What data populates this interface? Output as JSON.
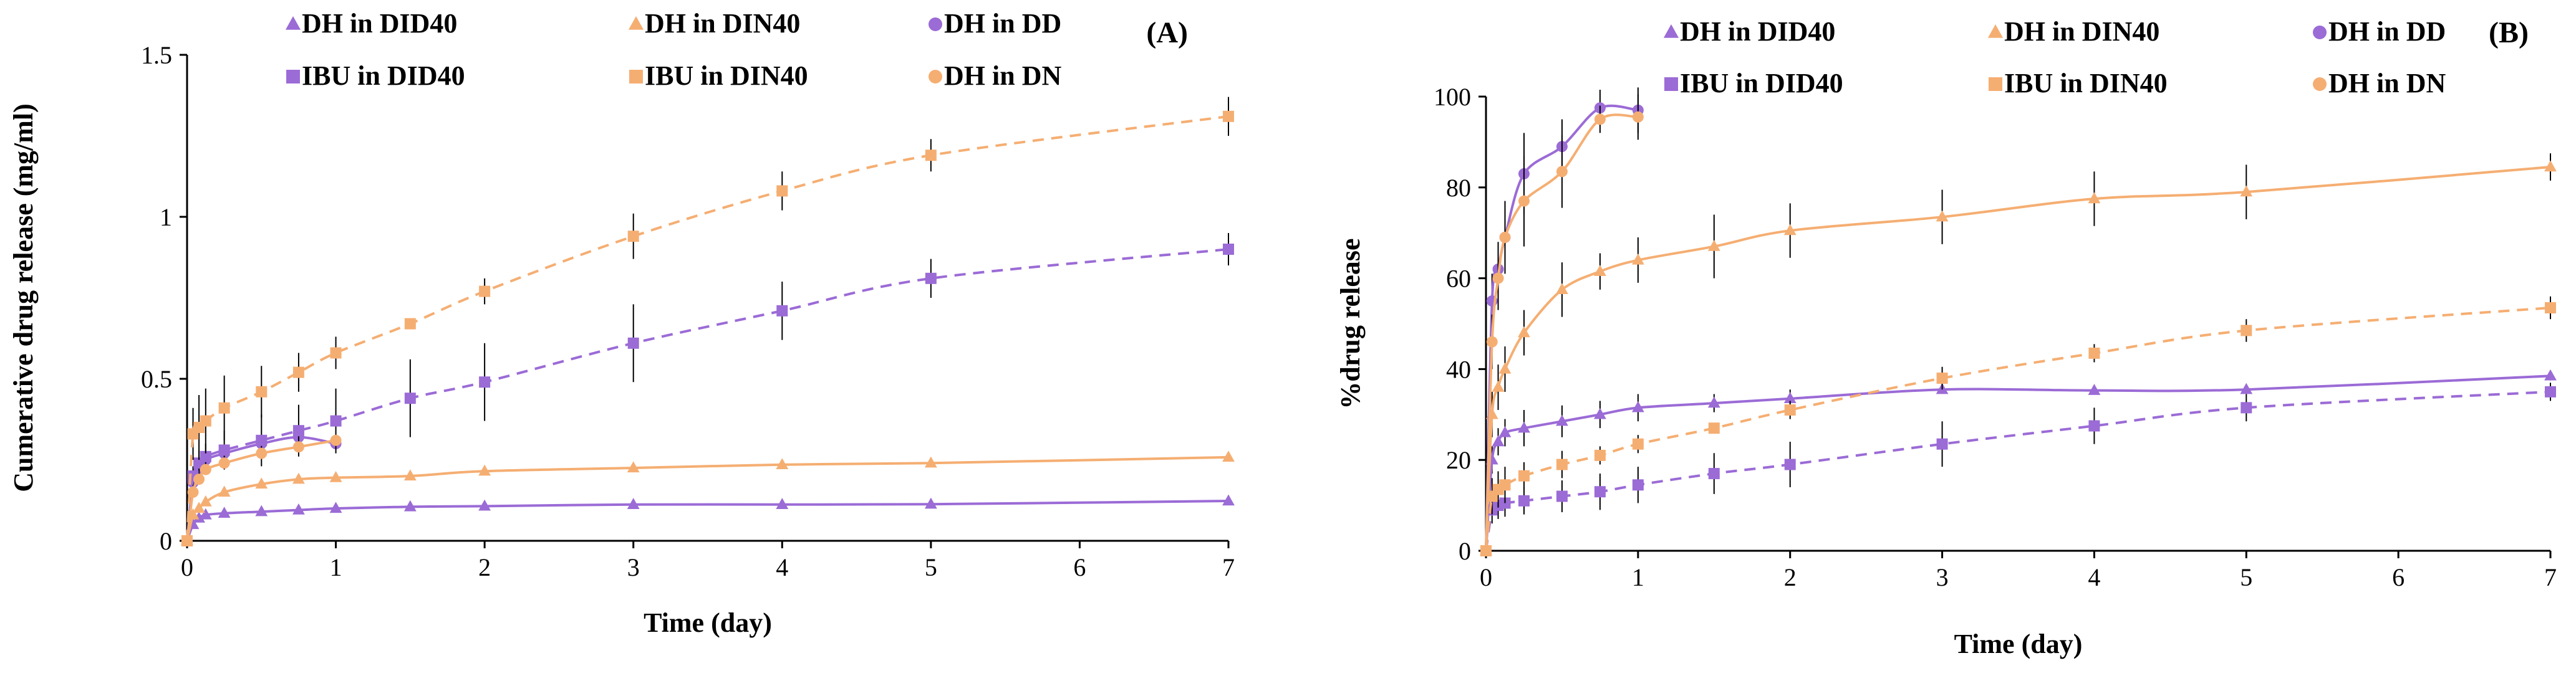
{
  "colors": {
    "purple": "#9b6bd6",
    "orange": "#f5ae72",
    "axis": "#000000",
    "errbar": "#000000"
  },
  "chart_data": [
    {
      "type": "line",
      "panel_label": "(A)",
      "xlabel": "Time (day)",
      "ylabel": "Cumerative drug release (mg/ml)",
      "xlim": [
        0,
        7
      ],
      "ylim": [
        0,
        1.5
      ],
      "xticks": [
        "0",
        "1",
        "2",
        "3",
        "4",
        "5",
        "6",
        "7"
      ],
      "yticks": [
        "0",
        "0.5",
        "1",
        "1.5"
      ],
      "grid": false,
      "legend_position": "top",
      "series": [
        {
          "name": "DH in DID40",
          "color": "purple",
          "marker": "triangle",
          "dash": "solid",
          "x": [
            0,
            0.04,
            0.08,
            0.125,
            0.25,
            0.5,
            0.75,
            1,
            1.5,
            2,
            3,
            4,
            5,
            7
          ],
          "y": [
            0,
            0.05,
            0.07,
            0.08,
            0.085,
            0.09,
            0.095,
            0.1,
            0.105,
            0.107,
            0.112,
            0.112,
            0.113,
            0.123
          ],
          "err": [
            0,
            0,
            0,
            0,
            0,
            0,
            0,
            0,
            0,
            0,
            0,
            0,
            0,
            0
          ]
        },
        {
          "name": "DH in DIN40",
          "color": "orange",
          "marker": "triangle",
          "dash": "solid",
          "x": [
            0,
            0.04,
            0.08,
            0.125,
            0.25,
            0.5,
            0.75,
            1,
            1.5,
            2,
            3,
            4,
            5,
            7
          ],
          "y": [
            0,
            0.08,
            0.1,
            0.12,
            0.15,
            0.175,
            0.19,
            0.195,
            0.2,
            0.215,
            0.225,
            0.235,
            0.24,
            0.258
          ],
          "err": [
            0,
            0,
            0,
            0,
            0,
            0,
            0,
            0,
            0,
            0,
            0,
            0,
            0,
            0
          ]
        },
        {
          "name": "DH in DD",
          "color": "purple",
          "marker": "circle",
          "dash": "solid",
          "x": [
            0,
            0.04,
            0.08,
            0.125,
            0.25,
            0.5,
            0.75,
            1
          ],
          "y": [
            0,
            0.18,
            0.22,
            0.25,
            0.27,
            0.3,
            0.32,
            0.3
          ],
          "err": [
            0,
            0,
            0,
            0,
            0,
            0,
            0,
            0
          ]
        },
        {
          "name": "IBU in DID40",
          "color": "purple",
          "marker": "square",
          "dash": "dashed",
          "x": [
            0,
            0.04,
            0.08,
            0.125,
            0.25,
            0.5,
            0.75,
            1,
            1.5,
            2,
            3,
            4,
            5,
            7
          ],
          "y": [
            0,
            0.2,
            0.24,
            0.26,
            0.28,
            0.31,
            0.34,
            0.37,
            0.44,
            0.49,
            0.61,
            0.71,
            0.81,
            0.9
          ],
          "err": [
            0,
            0.03,
            0.04,
            0.04,
            0.06,
            0.08,
            0.08,
            0.1,
            0.12,
            0.12,
            0.12,
            0.09,
            0.06,
            0.05
          ]
        },
        {
          "name": "IBU in DIN40",
          "color": "orange",
          "marker": "square",
          "dash": "dashed",
          "x": [
            0,
            0.04,
            0.08,
            0.125,
            0.25,
            0.5,
            0.75,
            1,
            1.5,
            2,
            3,
            4,
            5,
            7
          ],
          "y": [
            0,
            0.33,
            0.35,
            0.37,
            0.41,
            0.46,
            0.52,
            0.58,
            0.67,
            0.77,
            0.94,
            1.08,
            1.19,
            1.31
          ],
          "err": [
            0,
            0.08,
            0.1,
            0.1,
            0.1,
            0.08,
            0.06,
            0.05,
            0,
            0.04,
            0.07,
            0.06,
            0.05,
            0.06
          ]
        },
        {
          "name": "DH in DN",
          "color": "orange",
          "marker": "circle",
          "dash": "solid",
          "x": [
            0,
            0.04,
            0.08,
            0.125,
            0.25,
            0.5,
            0.75,
            1
          ],
          "y": [
            0,
            0.15,
            0.19,
            0.22,
            0.24,
            0.27,
            0.29,
            0.31
          ],
          "err": [
            0,
            0,
            0,
            0,
            0,
            0,
            0,
            0
          ]
        }
      ]
    },
    {
      "type": "line",
      "panel_label": "(B)",
      "xlabel": "Time (day)",
      "ylabel": "%drug release",
      "xlim": [
        0,
        7
      ],
      "ylim": [
        0,
        100
      ],
      "xticks": [
        "0",
        "1",
        "2",
        "3",
        "4",
        "5",
        "6",
        "7"
      ],
      "yticks": [
        "0",
        "20",
        "40",
        "60",
        "80",
        "100"
      ],
      "grid": false,
      "legend_position": "top",
      "series": [
        {
          "name": "DH in DID40",
          "color": "purple",
          "marker": "triangle",
          "dash": "solid",
          "x": [
            0,
            0.04,
            0.08,
            0.125,
            0.25,
            0.5,
            0.75,
            1,
            1.5,
            2,
            3,
            4,
            5,
            7
          ],
          "y": [
            0,
            20,
            24,
            26,
            27,
            28.5,
            30,
            31.5,
            32.5,
            33.5,
            35.5,
            35.3,
            35.5,
            38.5
          ],
          "err": [
            0,
            3,
            3,
            3,
            4,
            3.5,
            3,
            3,
            2,
            2,
            0,
            0,
            0,
            1
          ]
        },
        {
          "name": "DH in DIN40",
          "color": "orange",
          "marker": "triangle",
          "dash": "solid",
          "x": [
            0,
            0.04,
            0.08,
            0.125,
            0.25,
            0.5,
            0.75,
            1,
            1.5,
            2,
            3,
            4,
            5,
            7
          ],
          "y": [
            0,
            30,
            36,
            40,
            48,
            57.5,
            61.5,
            64,
            67,
            70.5,
            73.5,
            77.5,
            79,
            84.5
          ],
          "err": [
            0,
            5,
            5,
            5,
            5,
            6,
            4,
            5,
            7,
            6,
            6,
            6,
            6,
            3
          ]
        },
        {
          "name": "DH in DD",
          "color": "purple",
          "marker": "circle",
          "dash": "solid",
          "x": [
            0,
            0.04,
            0.08,
            0.125,
            0.25,
            0.5,
            0.75,
            1
          ],
          "y": [
            0,
            55,
            62,
            69,
            83,
            89,
            97.5,
            97
          ],
          "err": [
            0,
            6,
            6,
            8,
            9,
            6,
            4,
            5
          ]
        },
        {
          "name": "IBU in DID40",
          "color": "purple",
          "marker": "square",
          "dash": "dashed",
          "x": [
            0,
            0.04,
            0.08,
            0.125,
            0.25,
            0.5,
            0.75,
            1,
            1.5,
            2,
            3,
            4,
            5,
            7
          ],
          "y": [
            0,
            9,
            10,
            10.5,
            11,
            12,
            13,
            14.5,
            17,
            19,
            23.5,
            27.5,
            31.5,
            35
          ],
          "err": [
            0,
            3,
            3,
            3,
            3,
            3.5,
            4,
            4,
            4.5,
            5,
            5,
            4,
            3,
            2
          ]
        },
        {
          "name": "IBU in DIN40",
          "color": "orange",
          "marker": "square",
          "dash": "dashed",
          "x": [
            0,
            0.04,
            0.08,
            0.125,
            0.25,
            0.5,
            0.75,
            1,
            1.5,
            2,
            3,
            4,
            5,
            7
          ],
          "y": [
            0,
            12,
            13.5,
            14.5,
            16.5,
            19,
            21,
            23.5,
            27,
            31,
            38,
            43.5,
            48.5,
            53.5
          ],
          "err": [
            0,
            4,
            4,
            4,
            3,
            3,
            2,
            2,
            0,
            2,
            2.5,
            2,
            2.5,
            2.5
          ]
        },
        {
          "name": "DH in DN",
          "color": "orange",
          "marker": "circle",
          "dash": "solid",
          "x": [
            0,
            0.04,
            0.08,
            0.125,
            0.25,
            0.5,
            0.75,
            1
          ],
          "y": [
            0,
            46,
            60,
            69,
            77,
            83.5,
            95,
            95.5
          ],
          "err": [
            0,
            6,
            7,
            8,
            10,
            8,
            3,
            5
          ]
        }
      ]
    }
  ]
}
